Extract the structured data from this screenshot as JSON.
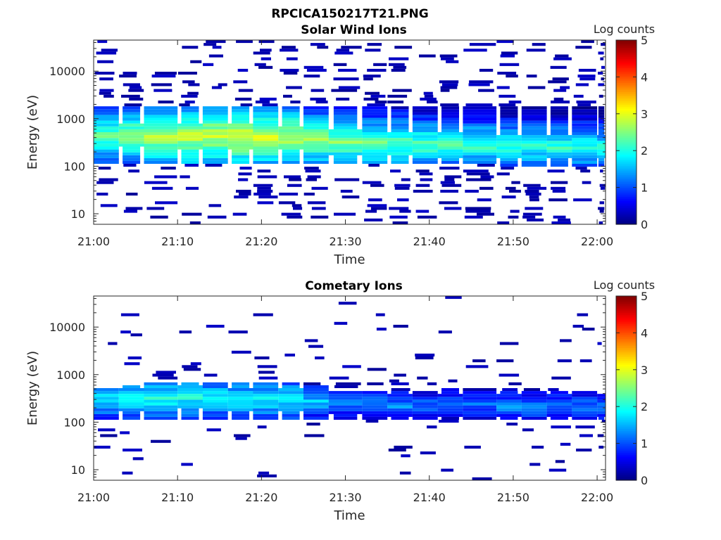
{
  "figure_title": "RPCICA150217T21.PNG",
  "chart_data": [
    {
      "type": "heatmap",
      "title": "Solar Wind Ions",
      "xlabel": "Time",
      "ylabel": "Energy (eV)",
      "y_scale": "log",
      "ylim": [
        6,
        45000
      ],
      "xlim": [
        "21:00",
        "22:01"
      ],
      "x_ticks": [
        "21:00",
        "21:10",
        "21:20",
        "21:30",
        "21:40",
        "21:50",
        "22:00"
      ],
      "y_ticks": [
        "10",
        "100",
        "1000",
        "10000"
      ],
      "colorbar": {
        "label": "Log counts",
        "range": [
          0,
          5
        ],
        "ticks": [
          "0",
          "1",
          "2",
          "3",
          "4",
          "5"
        ]
      },
      "time_bins": [
        "21:00",
        "21:03",
        "21:06",
        "21:10",
        "21:13",
        "21:16",
        "21:19",
        "21:22",
        "21:25",
        "21:28",
        "21:32",
        "21:35",
        "21:38",
        "21:41",
        "21:44",
        "21:48",
        "21:51",
        "21:54",
        "21:57",
        "22:00"
      ],
      "core_low_ev": [
        120,
        120,
        120,
        120,
        120,
        120,
        120,
        120,
        120,
        120,
        110,
        110,
        110,
        110,
        110,
        100,
        100,
        100,
        100,
        100
      ],
      "core_high_ev": [
        1800,
        1800,
        1800,
        1800,
        1800,
        1800,
        1800,
        1800,
        1800,
        1800,
        1800,
        1800,
        1800,
        1800,
        1800,
        1800,
        1800,
        1800,
        1800,
        1800
      ],
      "peak_ev": [
        450,
        450,
        430,
        420,
        430,
        420,
        410,
        400,
        350,
        320,
        300,
        300,
        290,
        280,
        280,
        260,
        260,
        250,
        250,
        250
      ],
      "peak_log_counts": [
        2.4,
        2.6,
        2.8,
        2.9,
        2.9,
        3.0,
        2.9,
        2.9,
        2.6,
        2.5,
        2.4,
        2.4,
        2.3,
        2.2,
        2.2,
        2.1,
        2.1,
        2.1,
        2.1,
        2.0
      ]
    },
    {
      "type": "heatmap",
      "title": "Cometary Ions",
      "xlabel": "Time",
      "ylabel": "Energy (eV)",
      "y_scale": "log",
      "ylim": [
        6,
        45000
      ],
      "xlim": [
        "21:00",
        "22:01"
      ],
      "x_ticks": [
        "21:00",
        "21:10",
        "21:20",
        "21:30",
        "21:40",
        "21:50",
        "22:00"
      ],
      "y_ticks": [
        "10",
        "100",
        "1000",
        "10000"
      ],
      "colorbar": {
        "label": "Log counts",
        "range": [
          0,
          5
        ],
        "ticks": [
          "0",
          "1",
          "2",
          "3",
          "4",
          "5"
        ]
      },
      "time_bins": [
        "21:00",
        "21:03",
        "21:06",
        "21:10",
        "21:13",
        "21:16",
        "21:19",
        "21:22",
        "21:25",
        "21:28",
        "21:32",
        "21:35",
        "21:38",
        "21:41",
        "21:44",
        "21:48",
        "21:51",
        "21:54",
        "21:57",
        "22:00"
      ],
      "core_low_ev": [
        110,
        110,
        110,
        110,
        110,
        110,
        110,
        110,
        110,
        120,
        120,
        110,
        110,
        110,
        110,
        110,
        110,
        110,
        110,
        110
      ],
      "core_high_ev": [
        550,
        600,
        700,
        700,
        700,
        700,
        700,
        700,
        600,
        450,
        450,
        450,
        450,
        500,
        550,
        450,
        450,
        450,
        450,
        400
      ],
      "peak_ev": [
        300,
        300,
        320,
        330,
        320,
        310,
        300,
        300,
        280,
        250,
        230,
        220,
        220,
        230,
        240,
        220,
        220,
        220,
        220,
        220
      ],
      "peak_log_counts": [
        1.8,
        1.9,
        2.0,
        2.0,
        1.9,
        1.9,
        1.9,
        1.9,
        1.6,
        1.3,
        1.3,
        1.3,
        1.2,
        1.2,
        1.2,
        1.3,
        1.3,
        1.2,
        1.2,
        1.3
      ]
    }
  ]
}
